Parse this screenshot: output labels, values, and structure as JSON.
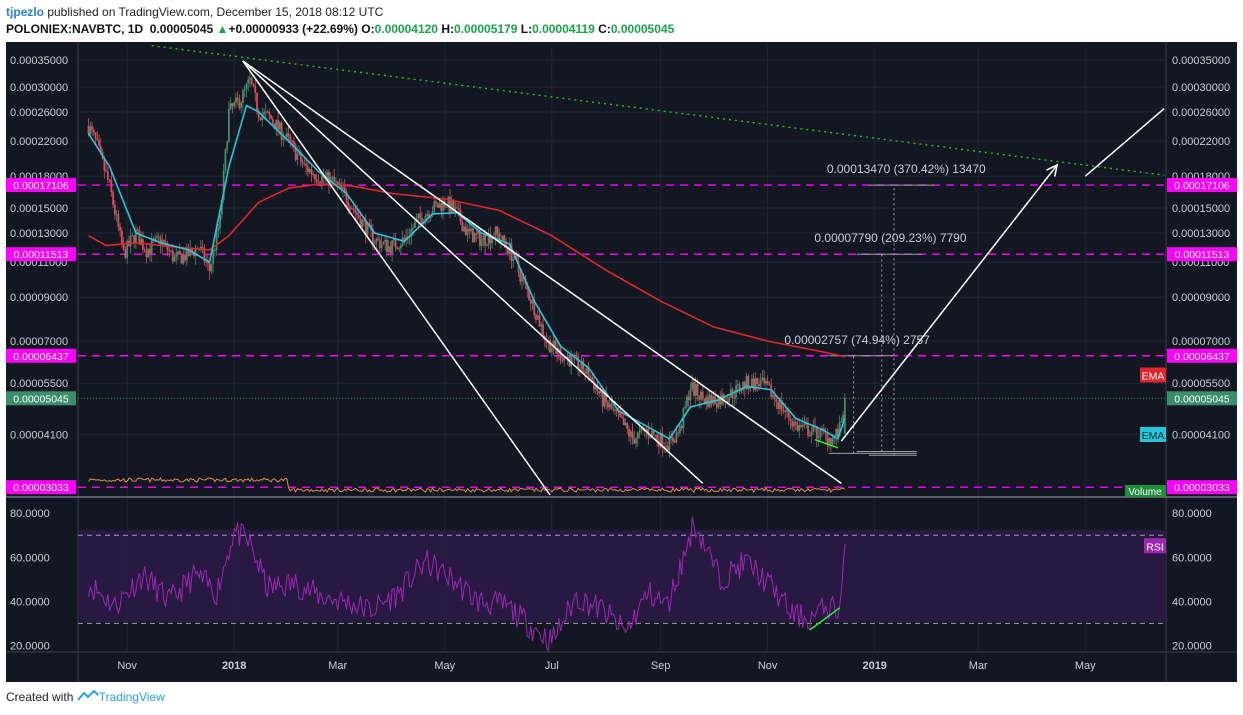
{
  "header": {
    "author": "tjpezlo",
    "published_text": " published on TradingView.com, December 15, 2018 08:12 UTC",
    "symbol": "POLONIEX:NAVBTC, 1D",
    "last": "0.00005045",
    "change_arrow": "▲",
    "change": "+0.00000933 (+22.69%)",
    "o_label": "O:",
    "o": "0.00004120",
    "h_label": "H:",
    "h": "0.00005179",
    "l_label": "L:",
    "l": "0.00004119",
    "c_label": "C:",
    "c": "0.00005045"
  },
  "footer": {
    "created_with": "Created with",
    "brand": "TradingView"
  },
  "colors": {
    "background": "#131722",
    "bull_candle": "#4b8a6a",
    "bear_candle": "#d2505a",
    "ema_fast": "#26c6da",
    "ema_slow": "#e0262a",
    "level": "#ff00ff",
    "rsi": "#9c27b0",
    "trend_green": "#1fc31f",
    "volume_line": "#e08a4a"
  },
  "chart_data": [
    {
      "type": "candlestick",
      "title": "POLONIEX:NAVBTC, 1D",
      "y_scale": "log",
      "ylim": [
        2.9e-05,
        0.000375
      ],
      "y_ticks": [
        "0.00035000",
        "0.00030000",
        "0.00026000",
        "0.00022000",
        "0.00018000",
        "0.00015000",
        "0.00013000",
        "0.00011000",
        "0.00009000",
        "0.00007000",
        "0.00005500",
        "0.00004100"
      ],
      "x_labels": [
        "Nov",
        "2018",
        "Mar",
        "May",
        "Jul",
        "Sep",
        "Nov",
        "2019",
        "Mar",
        "May"
      ],
      "price_path": [
        [
          "2017-10-10",
          0.00024
        ],
        [
          "2017-10-14",
          0.00022
        ],
        [
          "2017-10-22",
          0.00017
        ],
        [
          "2017-10-30",
          0.000115
        ],
        [
          "2017-11-06",
          0.00013
        ],
        [
          "2017-11-12",
          0.000118
        ],
        [
          "2017-11-20",
          0.000125
        ],
        [
          "2017-11-28",
          0.000112
        ],
        [
          "2017-12-06",
          0.000115
        ],
        [
          "2017-12-12",
          0.00012
        ],
        [
          "2017-12-18",
          0.000105
        ],
        [
          "2017-12-24",
          0.00014
        ],
        [
          "2017-12-29",
          0.00026
        ],
        [
          "2018-01-05",
          0.00028
        ],
        [
          "2018-01-10",
          0.00031
        ],
        [
          "2018-01-15",
          0.00026
        ],
        [
          "2018-01-22",
          0.00025
        ],
        [
          "2018-02-01",
          0.00022
        ],
        [
          "2018-02-10",
          0.00019
        ],
        [
          "2018-02-18",
          0.00018
        ],
        [
          "2018-02-26",
          0.000175
        ],
        [
          "2018-03-06",
          0.00016
        ],
        [
          "2018-03-14",
          0.00014
        ],
        [
          "2018-03-22",
          0.000125
        ],
        [
          "2018-03-30",
          0.00012
        ],
        [
          "2018-04-08",
          0.000125
        ],
        [
          "2018-04-16",
          0.00014
        ],
        [
          "2018-04-24",
          0.00015
        ],
        [
          "2018-05-02",
          0.000155
        ],
        [
          "2018-05-08",
          0.000145
        ],
        [
          "2018-05-14",
          0.00013
        ],
        [
          "2018-05-22",
          0.000125
        ],
        [
          "2018-05-30",
          0.00013
        ],
        [
          "2018-06-07",
          0.000118
        ],
        [
          "2018-06-14",
          0.0001
        ],
        [
          "2018-06-21",
          8.5e-05
        ],
        [
          "2018-06-28",
          7e-05
        ],
        [
          "2018-07-06",
          6.5e-05
        ],
        [
          "2018-07-14",
          6.2e-05
        ],
        [
          "2018-07-22",
          5.8e-05
        ],
        [
          "2018-07-30",
          5e-05
        ],
        [
          "2018-08-08",
          4.5e-05
        ],
        [
          "2018-08-16",
          4e-05
        ],
        [
          "2018-08-24",
          4.2e-05
        ],
        [
          "2018-08-31",
          4e-05
        ],
        [
          "2018-09-06",
          3.9e-05
        ],
        [
          "2018-09-12",
          4.2e-05
        ],
        [
          "2018-09-18",
          5.4e-05
        ],
        [
          "2018-09-26",
          5e-05
        ],
        [
          "2018-10-04",
          5e-05
        ],
        [
          "2018-10-12",
          5.2e-05
        ],
        [
          "2018-10-20",
          5.5e-05
        ],
        [
          "2018-10-28",
          5.5e-05
        ],
        [
          "2018-11-03",
          5.2e-05
        ],
        [
          "2018-11-09",
          4.8e-05
        ],
        [
          "2018-11-17",
          4.3e-05
        ],
        [
          "2018-11-25",
          4.2e-05
        ],
        [
          "2018-12-03",
          4.1e-05
        ],
        [
          "2018-12-08",
          4e-05
        ],
        [
          "2018-12-12",
          4.2e-05
        ],
        [
          "2018-12-15",
          5.045e-05
        ]
      ],
      "ema_fast_path": [
        [
          "2017-10-10",
          0.00023
        ],
        [
          "2017-10-22",
          0.00019
        ],
        [
          "2017-11-06",
          0.00013
        ],
        [
          "2017-11-20",
          0.000123
        ],
        [
          "2017-12-06",
          0.000118
        ],
        [
          "2017-12-18",
          0.00011
        ],
        [
          "2017-12-29",
          0.00019
        ],
        [
          "2018-01-08",
          0.00027
        ],
        [
          "2018-01-15",
          0.00026
        ],
        [
          "2018-02-01",
          0.00022
        ],
        [
          "2018-02-18",
          0.000185
        ],
        [
          "2018-03-06",
          0.000163
        ],
        [
          "2018-03-22",
          0.00013
        ],
        [
          "2018-04-08",
          0.000124
        ],
        [
          "2018-04-24",
          0.000145
        ],
        [
          "2018-05-08",
          0.000146
        ],
        [
          "2018-05-22",
          0.00013
        ],
        [
          "2018-06-07",
          0.000122
        ],
        [
          "2018-06-21",
          8.8e-05
        ],
        [
          "2018-07-06",
          6.8e-05
        ],
        [
          "2018-07-22",
          6e-05
        ],
        [
          "2018-08-08",
          4.7e-05
        ],
        [
          "2018-08-24",
          4.3e-05
        ],
        [
          "2018-09-06",
          4e-05
        ],
        [
          "2018-09-18",
          4.8e-05
        ],
        [
          "2018-10-04",
          5e-05
        ],
        [
          "2018-10-20",
          5.4e-05
        ],
        [
          "2018-11-03",
          5.3e-05
        ],
        [
          "2018-11-17",
          4.5e-05
        ],
        [
          "2018-12-03",
          4.2e-05
        ],
        [
          "2018-12-11",
          4e-05
        ],
        [
          "2018-12-15",
          4.5e-05
        ]
      ],
      "ema_slow_path": [
        [
          "2017-10-10",
          0.000128
        ],
        [
          "2017-10-20",
          0.000121
        ],
        [
          "2017-11-06",
          0.000123
        ],
        [
          "2017-11-28",
          0.00012
        ],
        [
          "2017-12-18",
          0.000118
        ],
        [
          "2017-12-29",
          0.000128
        ],
        [
          "2018-01-15",
          0.000155
        ],
        [
          "2018-02-01",
          0.000168
        ],
        [
          "2018-02-18",
          0.000172
        ],
        [
          "2018-03-10",
          0.00017
        ],
        [
          "2018-04-01",
          0.000163
        ],
        [
          "2018-05-01",
          0.000158
        ],
        [
          "2018-06-01",
          0.000148
        ],
        [
          "2018-07-01",
          0.000128
        ],
        [
          "2018-08-01",
          0.000105
        ],
        [
          "2018-09-01",
          8.8e-05
        ],
        [
          "2018-10-01",
          7.6e-05
        ],
        [
          "2018-11-01",
          7e-05
        ],
        [
          "2018-12-01",
          6.6e-05
        ],
        [
          "2018-12-15",
          6.4e-05
        ]
      ],
      "levels": [
        {
          "value": 0.00017106,
          "label": "0.00017106"
        },
        {
          "value": 0.00011513,
          "label": "0.00011513"
        },
        {
          "value": 6.437e-05,
          "label": "0.00006437"
        },
        {
          "value": 3.033e-05,
          "label": "0.00003033"
        }
      ],
      "last_price": {
        "value": 5.045e-05,
        "label": "0.00005045"
      },
      "indicator_labels": {
        "ema_slow": "EMA",
        "ema_fast": "EMA",
        "volume": "Volume"
      },
      "targets": [
        {
          "label": "0.00002757 (74.94%) 2757",
          "from": 3.68e-05,
          "to": 6.437e-05
        },
        {
          "label": "0.00007790 (209.23%) 7790",
          "from": 3.72e-05,
          "to": 0.00011513
        },
        {
          "label": "0.00013470 (370.42%) 13470",
          "from": 3.64e-05,
          "to": 0.00017106
        }
      ],
      "trendlines": [
        {
          "from": [
            "2018-01-06",
            0.000348
          ],
          "to": [
            "2018-06-30",
            2.9e-05
          ]
        },
        {
          "from": [
            "2018-01-06",
            0.000348
          ],
          "to": [
            "2018-09-25",
            3.1e-05
          ]
        },
        {
          "from": [
            "2018-01-06",
            0.000348
          ],
          "to": [
            "2018-12-13",
            3.1e-05
          ]
        },
        {
          "from": [
            "2017-11-15",
            0.00038
          ],
          "to": [
            "2019-06-15",
            0.000181
          ]
        }
      ],
      "projection": [
        [
          "2018-12-13",
          3.95e-05
        ],
        [
          "2019-04-15",
          0.000192
        ]
      ],
      "projection_continued": [
        [
          "2019-05-01",
          0.00018
        ],
        [
          "2019-06-15",
          0.000265
        ]
      ]
    },
    {
      "type": "line",
      "title": "RSI",
      "label": "RSI",
      "ylim": [
        17,
        86
      ],
      "y_ticks": [
        "80.0000",
        "60.0000",
        "40.0000",
        "20.0000"
      ],
      "bands": [
        70,
        30
      ],
      "rsi_path": [
        [
          "2017-10-10",
          48
        ],
        [
          "2017-10-25",
          38
        ],
        [
          "2017-11-10",
          52
        ],
        [
          "2017-11-25",
          40
        ],
        [
          "2017-12-10",
          52
        ],
        [
          "2017-12-22",
          44
        ],
        [
          "2018-01-01",
          72
        ],
        [
          "2018-01-10",
          66
        ],
        [
          "2018-01-20",
          46
        ],
        [
          "2018-02-05",
          48
        ],
        [
          "2018-02-20",
          42
        ],
        [
          "2018-03-05",
          40
        ],
        [
          "2018-03-20",
          36
        ],
        [
          "2018-04-05",
          44
        ],
        [
          "2018-04-20",
          58
        ],
        [
          "2018-05-05",
          50
        ],
        [
          "2018-05-20",
          40
        ],
        [
          "2018-06-05",
          38
        ],
        [
          "2018-06-20",
          28
        ],
        [
          "2018-07-01",
          22
        ],
        [
          "2018-07-15",
          42
        ],
        [
          "2018-07-30",
          36
        ],
        [
          "2018-08-12",
          26
        ],
        [
          "2018-08-25",
          44
        ],
        [
          "2018-09-05",
          38
        ],
        [
          "2018-09-15",
          62
        ],
        [
          "2018-09-20",
          76
        ],
        [
          "2018-10-05",
          50
        ],
        [
          "2018-10-20",
          58
        ],
        [
          "2018-11-05",
          45
        ],
        [
          "2018-11-15",
          34
        ],
        [
          "2018-11-25",
          32
        ],
        [
          "2018-12-05",
          38
        ],
        [
          "2018-12-12",
          36
        ],
        [
          "2018-12-15",
          66
        ]
      ]
    }
  ]
}
